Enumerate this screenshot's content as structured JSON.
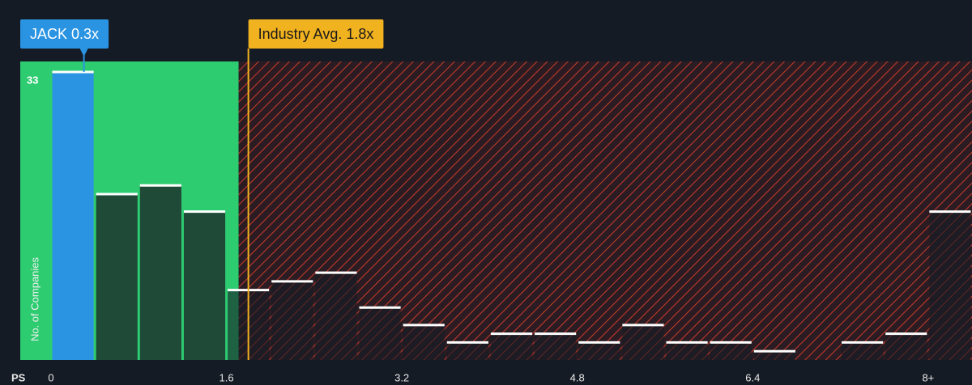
{
  "chart_data": {
    "type": "histogram",
    "bins": [
      0,
      0.4,
      0.8,
      1.2,
      1.6,
      2.0,
      2.4,
      2.8,
      3.2,
      3.6,
      4.0,
      4.4,
      4.8,
      5.2,
      5.6,
      6.0,
      6.4,
      6.8,
      7.2,
      7.6,
      8.0,
      8.4
    ],
    "values": [
      33,
      19,
      20,
      17,
      8,
      9,
      10,
      6,
      4,
      2,
      3,
      3,
      2,
      4,
      2,
      2,
      1,
      0,
      2,
      3,
      17
    ],
    "x_label": "PS",
    "y_label": "No. of Companies",
    "xlim": [
      0,
      8.4
    ],
    "xticks": [
      0,
      1.6,
      3.2,
      4.8,
      6.4,
      {
        "value": 8,
        "label": "8+"
      }
    ],
    "ylim": [
      0,
      34.2
    ],
    "yticks": [
      33
    ],
    "bar_color": "#1f4a37",
    "highlight_color": "#2b94e2",
    "good_zone_color": "#2ecc71",
    "bad_zone_color": "#c0392b",
    "annotations": [
      {
        "label": "JACK 0.3x",
        "x": 0.3,
        "color": "#2b94e2"
      },
      {
        "label": "Industry Avg. 1.8x",
        "x": 1.8,
        "color": "#f1b21f"
      }
    ]
  }
}
